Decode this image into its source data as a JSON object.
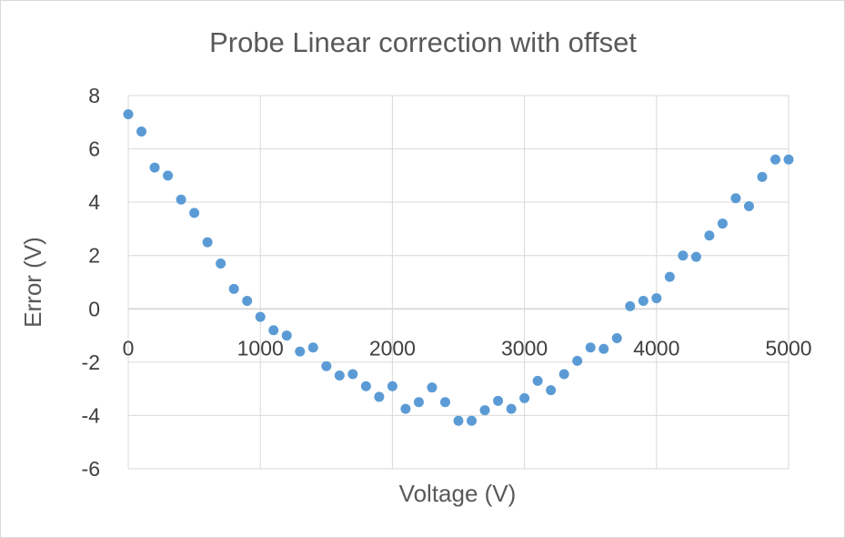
{
  "chart_data": {
    "type": "scatter",
    "title": "Probe Linear correction with offset",
    "xlabel": "Voltage (V)",
    "ylabel": "Error (V)",
    "xlim": [
      0,
      5000
    ],
    "ylim": [
      -6,
      8
    ],
    "x_ticks": [
      0,
      1000,
      2000,
      3000,
      4000,
      5000
    ],
    "y_ticks": [
      -6,
      -4,
      -2,
      0,
      2,
      4,
      6,
      8
    ],
    "grid": true,
    "legend": "none",
    "series": [
      {
        "color": "#5b9bd5",
        "x": [
          0,
          100,
          200,
          300,
          400,
          500,
          600,
          700,
          800,
          900,
          1000,
          1100,
          1200,
          1300,
          1400,
          1500,
          1600,
          1700,
          1800,
          1900,
          2000,
          2100,
          2200,
          2300,
          2400,
          2500,
          2600,
          2700,
          2800,
          2900,
          3000,
          3100,
          3200,
          3300,
          3400,
          3500,
          3600,
          3700,
          3800,
          3900,
          4000,
          4100,
          4200,
          4300,
          4400,
          4500,
          4600,
          4700,
          4800,
          4900,
          5000
        ],
        "y": [
          7.3,
          6.65,
          5.3,
          5.0,
          4.1,
          3.6,
          2.5,
          1.7,
          0.75,
          0.3,
          -0.3,
          -0.8,
          -1.0,
          -1.6,
          -1.45,
          -2.15,
          -2.5,
          -2.45,
          -2.9,
          -3.3,
          -2.9,
          -3.75,
          -3.5,
          -2.95,
          -3.5,
          -4.2,
          -4.2,
          -3.8,
          -3.45,
          -3.75,
          -3.35,
          -2.7,
          -3.05,
          -2.45,
          -1.95,
          -1.45,
          -1.5,
          -1.1,
          0.1,
          0.3,
          0.4,
          1.2,
          2.0,
          1.95,
          2.75,
          3.2,
          4.15,
          3.85,
          4.95,
          5.6,
          5.6
        ]
      }
    ]
  }
}
